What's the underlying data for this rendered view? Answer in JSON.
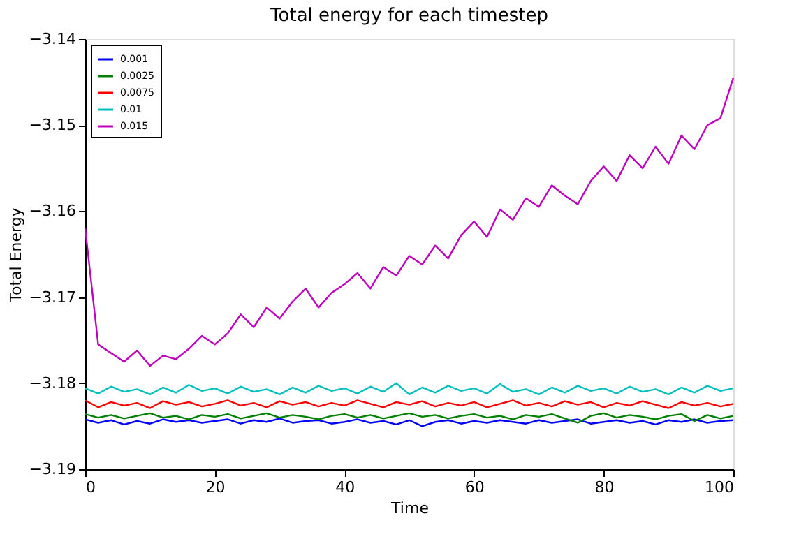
{
  "chart_data": {
    "type": "line",
    "title": "Total energy for each timestep",
    "xlabel": "Time",
    "ylabel": "Total Energy",
    "xlim": [
      0,
      100
    ],
    "xticks": [
      0,
      20,
      40,
      60,
      80,
      100
    ],
    "ylim": [
      -3.19,
      -3.14
    ],
    "yticks": [
      {
        "value": -3.19,
        "label": "−3.19"
      },
      {
        "value": -3.18,
        "label": "−3.18"
      },
      {
        "value": -3.17,
        "label": "−3.17"
      },
      {
        "value": -3.16,
        "label": "−3.16"
      },
      {
        "value": -3.15,
        "label": "−3.15"
      },
      {
        "value": -3.14,
        "label": "−3.14"
      }
    ],
    "grid": false,
    "legend": "top left",
    "line_style": "solid",
    "marker": "none",
    "x": [
      0,
      2,
      4,
      6,
      8,
      10,
      12,
      14,
      16,
      18,
      20,
      22,
      24,
      26,
      28,
      30,
      32,
      34,
      36,
      38,
      40,
      42,
      44,
      46,
      48,
      50,
      52,
      54,
      56,
      58,
      60,
      62,
      64,
      66,
      68,
      70,
      72,
      74,
      76,
      78,
      80,
      82,
      84,
      86,
      88,
      90,
      92,
      94,
      96,
      98,
      100
    ],
    "series": [
      {
        "name": "0.001",
        "color": "#0000ff",
        "values": [
          -3.1842,
          -3.1846,
          -3.1843,
          -3.1848,
          -3.1844,
          -3.1847,
          -3.1842,
          -3.1845,
          -3.1843,
          -3.1846,
          -3.1844,
          -3.1842,
          -3.1847,
          -3.1843,
          -3.1845,
          -3.1841,
          -3.1846,
          -3.1844,
          -3.1843,
          -3.1847,
          -3.1845,
          -3.1842,
          -3.1846,
          -3.1844,
          -3.1848,
          -3.1843,
          -3.185,
          -3.1845,
          -3.1843,
          -3.1847,
          -3.1844,
          -3.1846,
          -3.1843,
          -3.1845,
          -3.1847,
          -3.1843,
          -3.1846,
          -3.1844,
          -3.1842,
          -3.1847,
          -3.1845,
          -3.1843,
          -3.1846,
          -3.1844,
          -3.1848,
          -3.1843,
          -3.1845,
          -3.1842,
          -3.1846,
          -3.1844,
          -3.1843
        ]
      },
      {
        "name": "0.0025",
        "color": "#008000",
        "values": [
          -3.1836,
          -3.184,
          -3.1837,
          -3.1841,
          -3.1838,
          -3.1835,
          -3.184,
          -3.1838,
          -3.1842,
          -3.1837,
          -3.1839,
          -3.1836,
          -3.1841,
          -3.1838,
          -3.1835,
          -3.184,
          -3.1837,
          -3.1839,
          -3.1842,
          -3.1838,
          -3.1836,
          -3.184,
          -3.1837,
          -3.1841,
          -3.1838,
          -3.1835,
          -3.1839,
          -3.1837,
          -3.1841,
          -3.1838,
          -3.1836,
          -3.184,
          -3.1838,
          -3.1842,
          -3.1837,
          -3.1839,
          -3.1836,
          -3.1841,
          -3.1846,
          -3.1838,
          -3.1835,
          -3.184,
          -3.1837,
          -3.1839,
          -3.1842,
          -3.1838,
          -3.1836,
          -3.1844,
          -3.1837,
          -3.1841,
          -3.1838
        ]
      },
      {
        "name": "0.0075",
        "color": "#ff0000",
        "values": [
          -3.182,
          -3.1828,
          -3.1822,
          -3.1826,
          -3.1823,
          -3.1829,
          -3.1821,
          -3.1825,
          -3.1822,
          -3.1827,
          -3.1824,
          -3.182,
          -3.1826,
          -3.1823,
          -3.1828,
          -3.1821,
          -3.1825,
          -3.1822,
          -3.1827,
          -3.1823,
          -3.1826,
          -3.182,
          -3.1824,
          -3.1828,
          -3.1822,
          -3.1825,
          -3.1821,
          -3.1827,
          -3.1823,
          -3.1826,
          -3.1822,
          -3.1828,
          -3.1824,
          -3.182,
          -3.1826,
          -3.1823,
          -3.1827,
          -3.1821,
          -3.1825,
          -3.1822,
          -3.1828,
          -3.1823,
          -3.1826,
          -3.1821,
          -3.1825,
          -3.1829,
          -3.1822,
          -3.1826,
          -3.1823,
          -3.1827,
          -3.1824
        ]
      },
      {
        "name": "0.01",
        "color": "#00bfbf",
        "values": [
          -3.1806,
          -3.1812,
          -3.1804,
          -3.181,
          -3.1807,
          -3.1813,
          -3.1805,
          -3.1811,
          -3.1802,
          -3.1809,
          -3.1806,
          -3.1812,
          -3.1804,
          -3.181,
          -3.1807,
          -3.1813,
          -3.1805,
          -3.1811,
          -3.1803,
          -3.1809,
          -3.1806,
          -3.1812,
          -3.1804,
          -3.181,
          -3.18,
          -3.1813,
          -3.1805,
          -3.1811,
          -3.1803,
          -3.1809,
          -3.1806,
          -3.1812,
          -3.1801,
          -3.181,
          -3.1807,
          -3.1813,
          -3.1805,
          -3.1811,
          -3.1803,
          -3.1809,
          -3.1806,
          -3.1812,
          -3.1804,
          -3.181,
          -3.1807,
          -3.1813,
          -3.1805,
          -3.1811,
          -3.1803,
          -3.1809,
          -3.1806
        ]
      },
      {
        "name": "0.015",
        "color": "#bf00bf",
        "values": [
          -3.162,
          -3.1755,
          -3.1765,
          -3.1775,
          -3.1762,
          -3.178,
          -3.1768,
          -3.1772,
          -3.176,
          -3.1745,
          -3.1755,
          -3.1742,
          -3.172,
          -3.1735,
          -3.1712,
          -3.1725,
          -3.1705,
          -3.169,
          -3.1712,
          -3.1695,
          -3.1685,
          -3.1672,
          -3.169,
          -3.1665,
          -3.1675,
          -3.1652,
          -3.1662,
          -3.164,
          -3.1655,
          -3.1628,
          -3.1612,
          -3.163,
          -3.1598,
          -3.161,
          -3.1585,
          -3.1595,
          -3.157,
          -3.1582,
          -3.1592,
          -3.1565,
          -3.1548,
          -3.1565,
          -3.1535,
          -3.155,
          -3.1525,
          -3.1545,
          -3.1512,
          -3.1528,
          -3.15,
          -3.1492,
          -3.1445
        ]
      }
    ]
  }
}
